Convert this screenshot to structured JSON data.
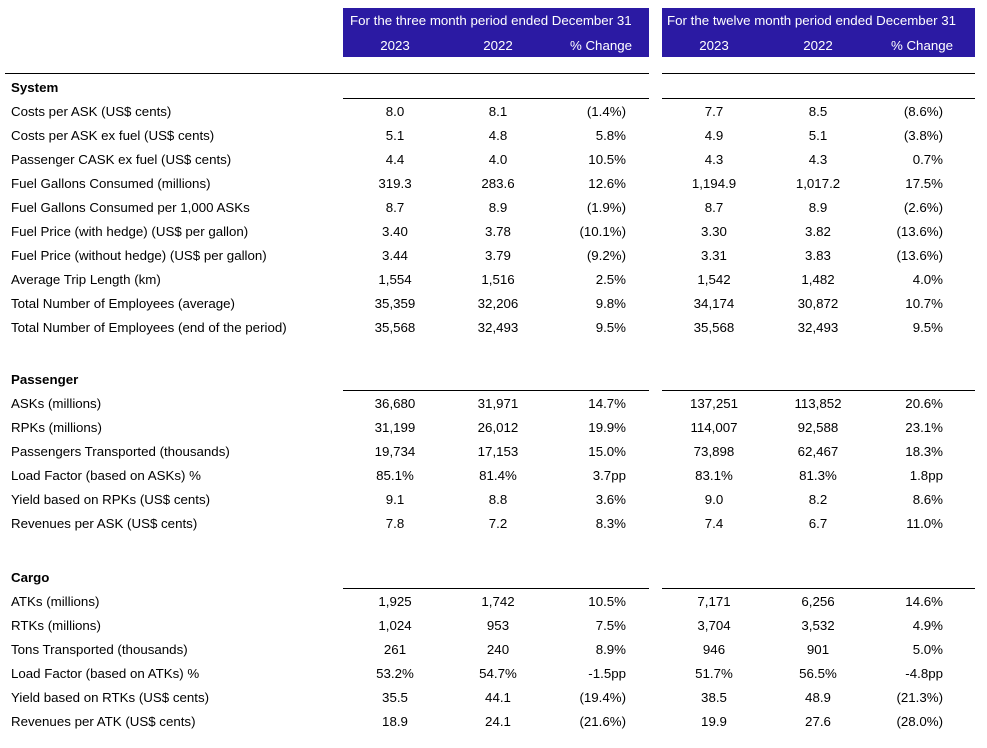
{
  "header": {
    "three_month_title": "For the three month period ended December 31",
    "twelve_month_title": "For the twelve month period ended December 31",
    "columns": [
      "2023",
      "2022",
      "% Change",
      "2023",
      "2022",
      "% Change"
    ]
  },
  "sections": [
    {
      "title": "System",
      "rows": [
        {
          "label": "Costs per ASK (US$ cents)",
          "values": [
            "8.0",
            "8.1",
            "(1.4%)",
            "7.7",
            "8.5",
            "(8.6%)"
          ]
        },
        {
          "label": "Costs per ASK ex fuel  (US$ cents)",
          "values": [
            "5.1",
            "4.8",
            "5.8%",
            "4.9",
            "5.1",
            "(3.8%)"
          ]
        },
        {
          "label": "Passenger CASK ex fuel (US$ cents)",
          "values": [
            "4.4",
            "4.0",
            "10.5%",
            "4.3",
            "4.3",
            "0.7%"
          ]
        },
        {
          "label": "Fuel Gallons Consumed (millions)",
          "values": [
            "319.3",
            "283.6",
            "12.6%",
            "1,194.9",
            "1,017.2",
            "17.5%"
          ]
        },
        {
          "label": "Fuel Gallons Consumed per 1,000 ASKs",
          "values": [
            "8.7",
            "8.9",
            "(1.9%)",
            "8.7",
            "8.9",
            "(2.6%)"
          ]
        },
        {
          "label": "Fuel Price (with hedge) (US$ per gallon)",
          "values": [
            "3.40",
            "3.78",
            "(10.1%)",
            "3.30",
            "3.82",
            "(13.6%)"
          ]
        },
        {
          "label": "Fuel Price (without hedge) (US$ per gallon)",
          "values": [
            "3.44",
            "3.79",
            "(9.2%)",
            "3.31",
            "3.83",
            "(13.6%)"
          ]
        },
        {
          "label": "Average Trip Length (km)",
          "values": [
            "1,554",
            "1,516",
            "2.5%",
            "1,542",
            "1,482",
            "4.0%"
          ]
        },
        {
          "label": "Total Number of Employees (average)",
          "values": [
            "35,359",
            "32,206",
            "9.8%",
            "34,174",
            "30,872",
            "10.7%"
          ]
        },
        {
          "label": "Total Number of Employees (end of the period)",
          "values": [
            "35,568",
            "32,493",
            "9.5%",
            "35,568",
            "32,493",
            "9.5%"
          ]
        }
      ]
    },
    {
      "title": "Passenger",
      "rows": [
        {
          "label": "ASKs (millions)",
          "values": [
            "36,680",
            "31,971",
            "14.7%",
            "137,251",
            "113,852",
            "20.6%"
          ]
        },
        {
          "label": "RPKs (millions)",
          "values": [
            "31,199",
            "26,012",
            "19.9%",
            "114,007",
            "92,588",
            "23.1%"
          ]
        },
        {
          "label": "Passengers Transported (thousands)",
          "values": [
            "19,734",
            "17,153",
            "15.0%",
            "73,898",
            "62,467",
            "18.3%"
          ]
        },
        {
          "label": "Load Factor (based on ASKs) %",
          "values": [
            "85.1%",
            "81.4%",
            "3.7pp",
            "83.1%",
            "81.3%",
            "1.8pp"
          ]
        },
        {
          "label": "Yield based on RPKs (US$ cents)",
          "values": [
            "9.1",
            "8.8",
            "3.6%",
            "9.0",
            "8.2",
            "8.6%"
          ]
        },
        {
          "label": "Revenues per ASK (US$ cents)",
          "values": [
            "7.8",
            "7.2",
            "8.3%",
            "7.4",
            "6.7",
            "11.0%"
          ]
        }
      ]
    },
    {
      "title": "Cargo",
      "rows": [
        {
          "label": "ATKs (millions)",
          "values": [
            "1,925",
            "1,742",
            "10.5%",
            "7,171",
            "6,256",
            "14.6%"
          ]
        },
        {
          "label": "RTKs (millions)",
          "values": [
            "1,024",
            "953",
            "7.5%",
            "3,704",
            "3,532",
            "4.9%"
          ]
        },
        {
          "label": "Tons Transported (thousands)",
          "values": [
            "261",
            "240",
            "8.9%",
            "946",
            "901",
            "5.0%"
          ]
        },
        {
          "label": "Load Factor (based on ATKs) %",
          "values": [
            "53.2%",
            "54.7%",
            "-1.5pp",
            "51.7%",
            "56.5%",
            "-4.8pp"
          ]
        },
        {
          "label": "Yield based on RTKs (US$ cents)",
          "values": [
            "35.5",
            "44.1",
            "(19.4%)",
            "38.5",
            "48.9",
            "(21.3%)"
          ]
        },
        {
          "label": "Revenues per ATK (US$ cents)",
          "values": [
            "18.9",
            "24.1",
            "(21.6%)",
            "19.9",
            "27.6",
            "(28.0%)"
          ]
        }
      ]
    }
  ]
}
